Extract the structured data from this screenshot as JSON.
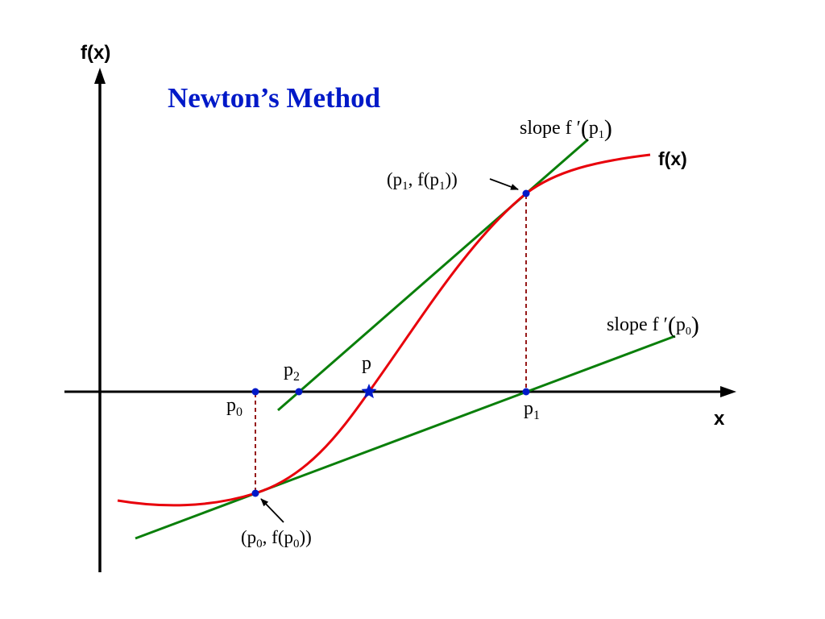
{
  "title": "Newton’s Method",
  "axis": {
    "y_label": "f(x)",
    "x_label": "x"
  },
  "curve_label": "f(x)",
  "points": {
    "p0": {
      "base": "p",
      "sub": "0"
    },
    "p1": {
      "base": "p",
      "sub": "1"
    },
    "p2": {
      "base": "p",
      "sub": "2"
    },
    "p": "p"
  },
  "point_labels": {
    "pt0": {
      "open": "(p",
      "sub1": "0",
      "mid": ", f(p",
      "sub2": "0",
      "close": "))"
    },
    "pt1": {
      "open": "(p",
      "sub1": "1",
      "mid": ", f(p",
      "sub2": "1",
      "close": "))"
    }
  },
  "slope_labels": {
    "s0": {
      "text": "slope f ′",
      "paren_open": "(",
      "base": "p",
      "sub": "0",
      "paren_close": ")"
    },
    "s1": {
      "text": "slope f ′",
      "paren_open": "(",
      "base": "p",
      "sub": "1",
      "paren_close": ")"
    }
  },
  "colors": {
    "curve": "#e8000b",
    "tangent": "#0a7f0a",
    "title": "#0019c8",
    "point": "#0019c8",
    "dashed": "#8b0000",
    "axis": "#000000"
  }
}
